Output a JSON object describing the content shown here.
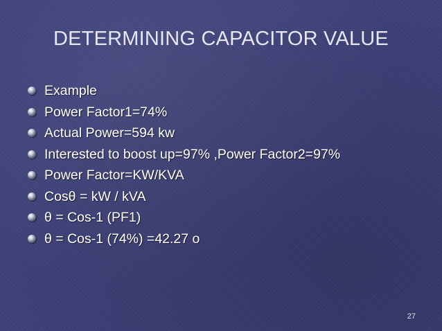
{
  "slide": {
    "title": "DETERMINING CAPACITOR VALUE",
    "bullets": [
      "Example",
      "Power Factor1=74%",
      "Actual Power=594 kw",
      "Interested to boost up=97% ,Power Factor2=97%",
      "Power Factor=KW/KVA",
      "Cosθ = kW / kVA",
      "θ = Cos-1 (PF1)",
      "θ = Cos-1 (74%) =42.27 o"
    ],
    "page_number": "27"
  },
  "colors": {
    "background": "#3d4078",
    "title_text": "#e6e6f4",
    "body_text": "#ffffff"
  },
  "icons": {
    "bullet": "sphere-bullet-icon"
  }
}
